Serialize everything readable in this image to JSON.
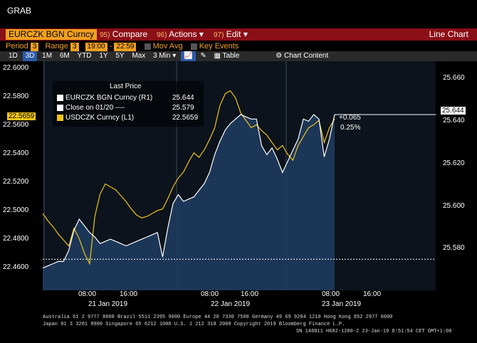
{
  "header": {
    "grab": "GRAB"
  },
  "menu": {
    "security": "EURCZK BGN Curncy",
    "compare_num": "95)",
    "compare": "Compare",
    "actions_num": "96)",
    "actions": "Actions",
    "edit_num": "97)",
    "edit": "Edit",
    "chart_type": "Line Chart"
  },
  "settings": {
    "period_label": "Period",
    "period_value": "3",
    "range_label": "Range",
    "range_value": "3",
    "start_time": "19:00",
    "end_time": "22:59",
    "mov_avg": "Mov Avg",
    "key_events": "Key Events"
  },
  "toolbar": {
    "timeframes": [
      "1D",
      "3D",
      "1M",
      "6M",
      "YTD",
      "1Y",
      "5Y",
      "Max"
    ],
    "active": "3D",
    "interval": "3 Min",
    "table": "Table",
    "chart_content": "Chart Content"
  },
  "legend": {
    "title": "Last Price",
    "r1_name": "EURCZK BGN Curncy  (R1)",
    "r1_value": "25.644",
    "close_name": "Close on 01/20  ----",
    "close_value": "25.579",
    "l1_name": "USDCZK Curncy  (L1)",
    "l1_value": "22.5659"
  },
  "annotations": {
    "change": "+0.065",
    "change_pct": "0.25%",
    "r1_tag": "25.644",
    "l1_tag": "22.5659"
  },
  "axes": {
    "left_ticks": [
      "22.6000",
      "22.5800",
      "22.5600",
      "22.5400",
      "22.5200",
      "22.5000",
      "22.4800",
      "22.4600"
    ],
    "right_ticks": [
      "25.660",
      "25.640",
      "25.620",
      "25.600",
      "25.580"
    ],
    "x_time_ticks": [
      "08:00",
      "16:00",
      "08:00",
      "16:00",
      "08:00",
      "16:00"
    ],
    "x_date_ticks": [
      "21 Jan 2019",
      "22 Jan 2019",
      "23 Jan 2019"
    ]
  },
  "footer": {
    "line1": "Australia 61 2 9777 8600 Brazil 5511 2395 9000 Europe 44 20 7330 7500 Germany 49 69 9204 1210 Hong Kong 852 2977 6000",
    "line2": "Japan 81 3 3201 8900          Singapore 65 6212 1000          U.S. 1 212 318 2000          Copyright 2019 Bloomberg Finance L.P.",
    "line3": "SN 148811 H682-1200-2 23-Jan-19   8:51:54 CET  GMT+1:00"
  },
  "chart_data": {
    "type": "line",
    "series": [
      {
        "name": "EURCZK BGN Curncy  (R1)",
        "axis": "right",
        "color": "#ffffff",
        "fill": "#1e3b5e",
        "values": [
          25.575,
          25.576,
          25.577,
          25.578,
          25.578,
          25.583,
          25.592,
          25.597,
          25.594,
          25.591,
          25.589,
          25.586,
          25.587,
          25.588,
          25.587,
          25.586,
          25.585,
          25.586,
          25.587,
          25.588,
          25.589,
          25.59,
          25.591,
          25.58,
          25.593,
          25.604,
          25.608,
          25.605,
          25.606,
          25.607,
          25.61,
          25.613,
          25.618,
          25.626,
          25.632,
          25.637,
          25.64,
          25.642,
          25.644,
          25.643,
          25.642,
          25.642,
          25.63,
          25.626,
          25.629,
          25.624,
          25.618,
          25.623,
          25.628,
          25.633,
          25.642,
          25.641,
          25.644,
          25.642,
          25.625,
          25.633,
          25.644
        ]
      },
      {
        "name": "USDCZK Curncy  (L1)",
        "axis": "left",
        "color": "#f0c419",
        "values": [
          22.502,
          22.497,
          22.493,
          22.488,
          22.484,
          22.48,
          22.492,
          22.485,
          22.475,
          22.468,
          22.5,
          22.515,
          22.522,
          22.52,
          22.518,
          22.514,
          22.51,
          22.505,
          22.501,
          22.499,
          22.5,
          22.502,
          22.504,
          22.505,
          22.512,
          22.52,
          22.526,
          22.53,
          22.537,
          22.543,
          22.54,
          22.545,
          22.552,
          22.56,
          22.575,
          22.583,
          22.585,
          22.58,
          22.57,
          22.565,
          22.56,
          22.562,
          22.558,
          22.555,
          22.55,
          22.545,
          22.548,
          22.542,
          22.538,
          22.548,
          22.554,
          22.56,
          22.562,
          22.565,
          22.55,
          22.56,
          22.5659
        ]
      }
    ],
    "close_on_0120": 25.579,
    "left_ylim": [
      22.45,
      22.605
    ],
    "right_ylim": [
      25.565,
      25.668
    ]
  }
}
